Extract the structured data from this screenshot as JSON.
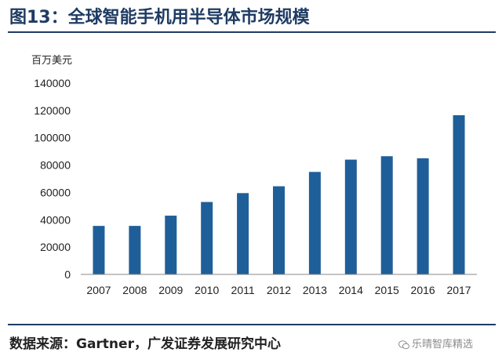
{
  "figure": {
    "title": "图13：全球智能手机用半导体市场规模",
    "source": "数据来源：Gartner，广发证券发展研究中心",
    "watermark": "乐晴智库精选",
    "bar_color": "#1f5f99",
    "accent_color": "#1f3b63"
  },
  "chart_data": {
    "type": "bar",
    "title": "全球智能手机用半导体市场规模",
    "ylabel": "百万美元",
    "xlabel": "",
    "ylim": [
      0,
      140000
    ],
    "yticks": [
      "0",
      "20000",
      "40000",
      "60000",
      "80000",
      "100000",
      "120000",
      "140000"
    ],
    "categories": [
      "2007",
      "2008",
      "2009",
      "2010",
      "2011",
      "2012",
      "2013",
      "2014",
      "2015",
      "2016",
      "2017"
    ],
    "values": [
      35500,
      35500,
      43000,
      53000,
      59500,
      64500,
      75000,
      84000,
      86500,
      85000,
      116500
    ],
    "grid": false
  }
}
